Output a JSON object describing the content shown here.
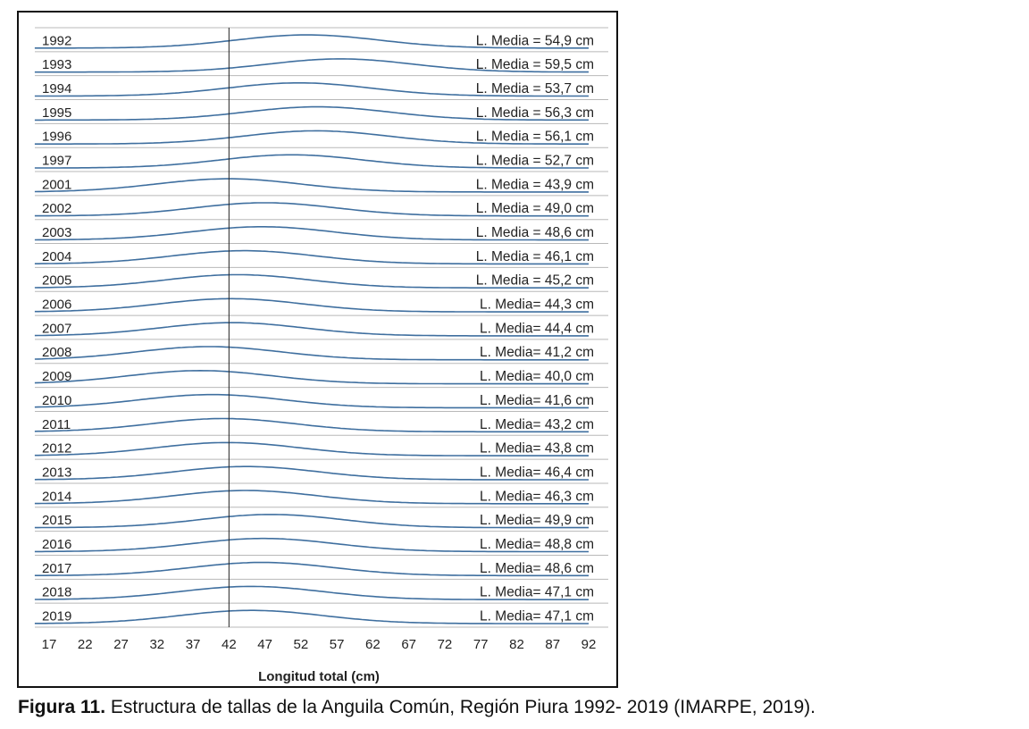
{
  "chart_data": {
    "type": "ridgeline",
    "xlabel": "Longitud total (cm)",
    "x_ticks": [
      17,
      22,
      27,
      32,
      37,
      42,
      47,
      52,
      57,
      62,
      67,
      72,
      77,
      82,
      87,
      92
    ],
    "xlim": [
      17,
      92
    ],
    "reference_line_x": 42,
    "line_color": "#3f6f9f",
    "grid_color": "#b8b8b8",
    "series": [
      {
        "name": "1992",
        "mean_label": "L. Media = 54,9 cm",
        "mean": 54.9
      },
      {
        "name": "1993",
        "mean_label": "L. Media = 59,5 cm",
        "mean": 59.5
      },
      {
        "name": "1994",
        "mean_label": "L. Media = 53,7 cm",
        "mean": 53.7
      },
      {
        "name": "1995",
        "mean_label": "L. Media = 56,3 cm",
        "mean": 56.3
      },
      {
        "name": "1996",
        "mean_label": "L. Media = 56,1 cm",
        "mean": 56.1
      },
      {
        "name": "1997",
        "mean_label": "L. Media = 52,7 cm",
        "mean": 52.7
      },
      {
        "name": "2001",
        "mean_label": "L. Media = 43,9 cm",
        "mean": 43.9
      },
      {
        "name": "2002",
        "mean_label": "L. Media = 49,0 cm",
        "mean": 49.0
      },
      {
        "name": "2003",
        "mean_label": "L. Media = 48,6 cm",
        "mean": 48.6
      },
      {
        "name": "2004",
        "mean_label": "L. Media = 46,1 cm",
        "mean": 46.1
      },
      {
        "name": "2005",
        "mean_label": "L. Media = 45,2 cm",
        "mean": 45.2
      },
      {
        "name": "2006",
        "mean_label": "L. Media= 44,3 cm",
        "mean": 44.3
      },
      {
        "name": "2007",
        "mean_label": "L. Media= 44,4 cm",
        "mean": 44.4
      },
      {
        "name": "2008",
        "mean_label": "L. Media= 41,2 cm",
        "mean": 41.2
      },
      {
        "name": "2009",
        "mean_label": "L. Media= 40,0 cm",
        "mean": 40.0
      },
      {
        "name": "2010",
        "mean_label": "L. Media= 41,6 cm",
        "mean": 41.6
      },
      {
        "name": "2011",
        "mean_label": "L. Media= 43,2 cm",
        "mean": 43.2
      },
      {
        "name": "2012",
        "mean_label": "L. Media= 43,8 cm",
        "mean": 43.8
      },
      {
        "name": "2013",
        "mean_label": "L. Media= 46,4 cm",
        "mean": 46.4
      },
      {
        "name": "2014",
        "mean_label": "L. Media= 46,3 cm",
        "mean": 46.3
      },
      {
        "name": "2015",
        "mean_label": "L. Media= 49,9 cm",
        "mean": 49.9
      },
      {
        "name": "2016",
        "mean_label": "L. Media= 48,8 cm",
        "mean": 48.8
      },
      {
        "name": "2017",
        "mean_label": "L. Media= 48,6 cm",
        "mean": 48.6
      },
      {
        "name": "2018",
        "mean_label": "L. Media= 47,1 cm",
        "mean": 47.1
      },
      {
        "name": "2019",
        "mean_label": "L. Media= 47,1 cm",
        "mean": 47.1
      }
    ]
  },
  "caption": {
    "bold": "Figura 11.",
    "text": " Estructura de tallas de la Anguila Común, Región Piura 1992- 2019 (IMARPE, 2019)."
  }
}
